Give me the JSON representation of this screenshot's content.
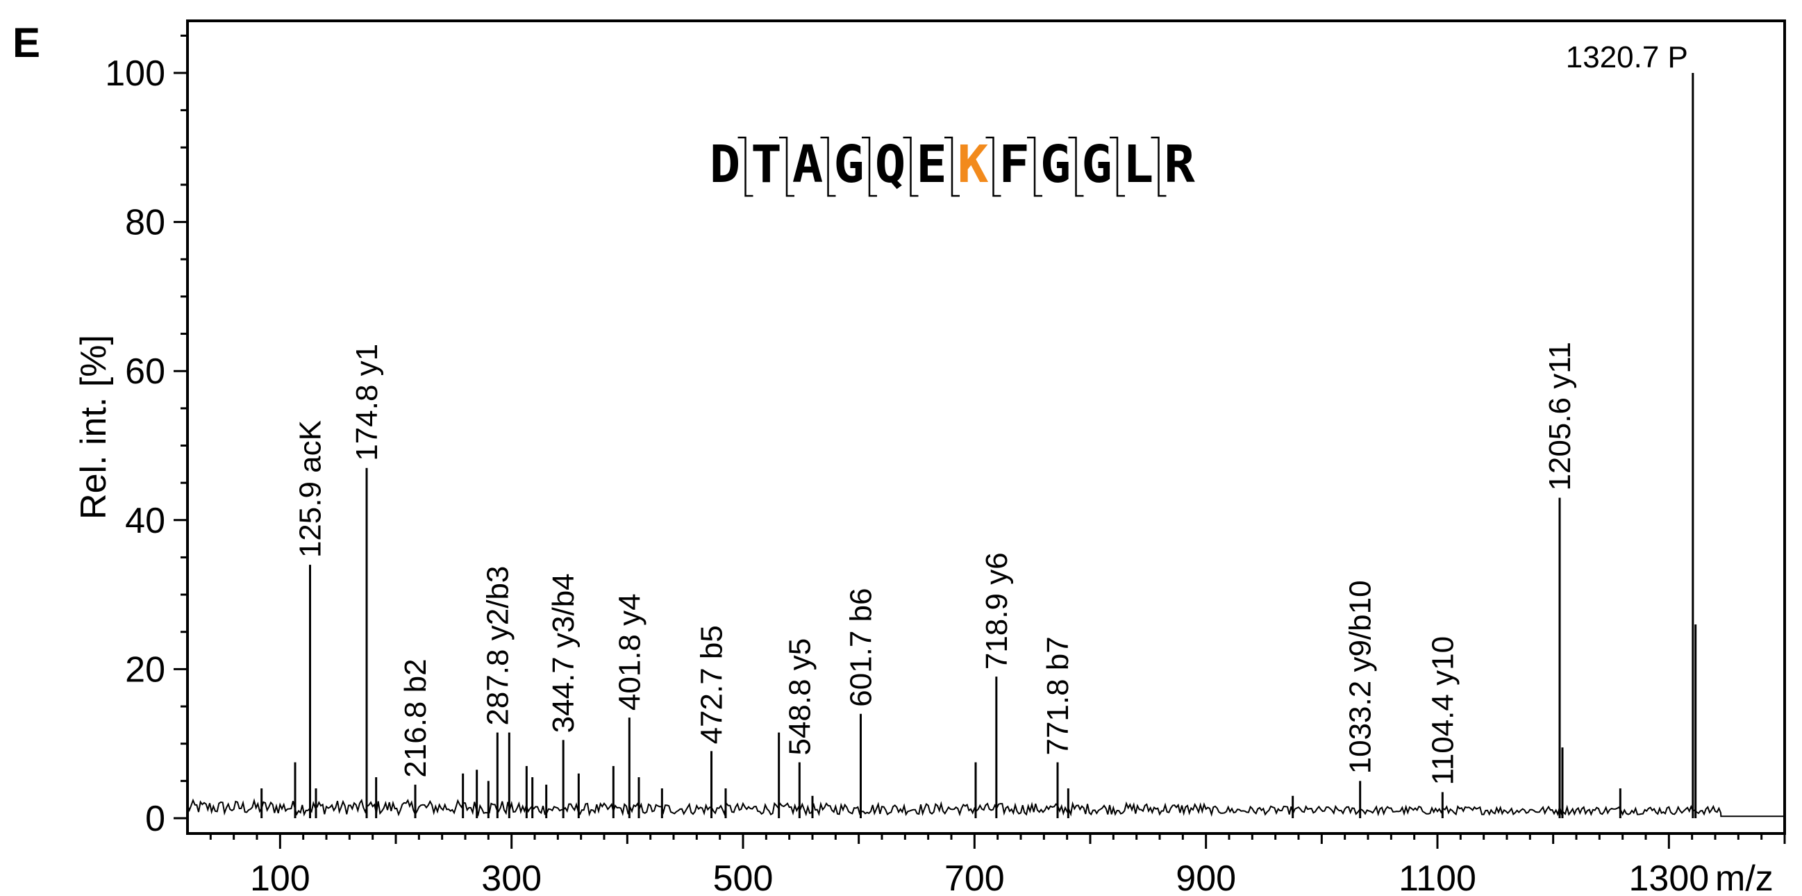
{
  "panel_label": "E",
  "chart_data": {
    "type": "bar",
    "title": "",
    "xlabel": "m/z",
    "ylabel": "Rel. int. [%]",
    "xlim": [
      20,
      1400
    ],
    "ylim": [
      0,
      107
    ],
    "xticks": [
      100,
      300,
      500,
      700,
      900,
      1100,
      1300
    ],
    "yticks": [
      0,
      20,
      40,
      60,
      80,
      100
    ],
    "line_color": "#000000",
    "sequence": {
      "residues": [
        "D",
        "T",
        "A",
        "G",
        "Q",
        "E",
        "K",
        "F",
        "G",
        "G",
        "L",
        "R"
      ],
      "highlight_index": 6,
      "highlight_color": "#f28a1c",
      "text_color": "#000000"
    },
    "labeled_peaks": [
      {
        "mz": 125.9,
        "intensity": 34,
        "label": "125.9 acK"
      },
      {
        "mz": 174.8,
        "intensity": 47,
        "label": "174.8 y1"
      },
      {
        "mz": 216.8,
        "intensity": 4.5,
        "label": "216.8 b2"
      },
      {
        "mz": 287.8,
        "intensity": 11.5,
        "label": "287.8 y2/b3"
      },
      {
        "mz": 344.7,
        "intensity": 10.5,
        "label": "344.7 y3/b4"
      },
      {
        "mz": 401.8,
        "intensity": 13.5,
        "label": "401.8 y4"
      },
      {
        "mz": 472.7,
        "intensity": 9,
        "label": "472.7 b5"
      },
      {
        "mz": 548.8,
        "intensity": 7.5,
        "label": "548.8 y5"
      },
      {
        "mz": 601.7,
        "intensity": 14,
        "label": "601.7 b6"
      },
      {
        "mz": 718.9,
        "intensity": 19,
        "label": "718.9 y6"
      },
      {
        "mz": 771.8,
        "intensity": 7.5,
        "label": "771.8 b7"
      },
      {
        "mz": 1033.2,
        "intensity": 5,
        "label": "1033.2 y9/b10"
      },
      {
        "mz": 1104.4,
        "intensity": 3.5,
        "label": "1104.4 y10"
      },
      {
        "mz": 1205.6,
        "intensity": 43,
        "label": "1205.6 y11"
      },
      {
        "mz": 1320.7,
        "intensity": 100,
        "label": "1320.7 P"
      }
    ],
    "unlabeled_peaks": [
      {
        "mz": 84,
        "intensity": 4
      },
      {
        "mz": 113,
        "intensity": 7.5
      },
      {
        "mz": 131,
        "intensity": 4
      },
      {
        "mz": 183,
        "intensity": 5.5
      },
      {
        "mz": 258,
        "intensity": 6
      },
      {
        "mz": 270,
        "intensity": 6.5
      },
      {
        "mz": 280,
        "intensity": 5
      },
      {
        "mz": 298,
        "intensity": 11.5
      },
      {
        "mz": 313,
        "intensity": 7
      },
      {
        "mz": 318,
        "intensity": 5.5
      },
      {
        "mz": 330,
        "intensity": 4.5
      },
      {
        "mz": 358,
        "intensity": 6
      },
      {
        "mz": 388,
        "intensity": 7
      },
      {
        "mz": 410,
        "intensity": 5.5
      },
      {
        "mz": 430,
        "intensity": 4
      },
      {
        "mz": 485,
        "intensity": 4
      },
      {
        "mz": 531,
        "intensity": 11.5
      },
      {
        "mz": 560,
        "intensity": 3
      },
      {
        "mz": 701,
        "intensity": 7.5
      },
      {
        "mz": 781,
        "intensity": 4
      },
      {
        "mz": 975,
        "intensity": 3
      },
      {
        "mz": 1208,
        "intensity": 9.5
      },
      {
        "mz": 1258,
        "intensity": 4
      },
      {
        "mz": 1323,
        "intensity": 26
      }
    ]
  }
}
